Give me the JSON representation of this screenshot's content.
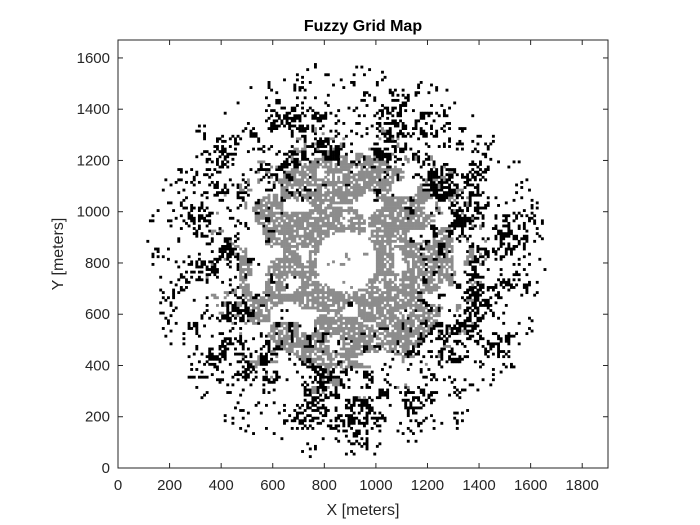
{
  "chart_data": {
    "type": "heatmap",
    "title": "Fuzzy Grid Map",
    "xlabel": "X [meters]",
    "ylabel": "Y [meters]",
    "xlim": [
      0,
      1900
    ],
    "ylim": [
      0,
      1670
    ],
    "xticks": [
      0,
      200,
      400,
      600,
      800,
      1000,
      1200,
      1400,
      1600,
      1800
    ],
    "yticks": [
      0,
      200,
      400,
      600,
      800,
      1000,
      1200,
      1400,
      1600
    ],
    "xtick_labels": [
      "0",
      "200",
      "400",
      "600",
      "800",
      "1000",
      "1200",
      "1400",
      "1600",
      "1800"
    ],
    "ytick_labels": [
      "0",
      "200",
      "400",
      "600",
      "800",
      "1000",
      "1200",
      "1400",
      "1600"
    ],
    "grid": false,
    "colormap": "grayscale",
    "cell_states": [
      {
        "state": "occupied",
        "color": "#000000"
      },
      {
        "state": "uncertain",
        "color": "#8c8c8c"
      },
      {
        "state": "free",
        "color": "#ffffff"
      }
    ],
    "map_center": [
      880,
      800
    ],
    "free_region_radius": 120,
    "uncertain_ring_radius": 420,
    "occupied_extent_radius": 780,
    "map_x_range": [
      90,
      1800
    ],
    "map_y_range": [
      40,
      1640
    ]
  },
  "colors": {
    "background": "#ffffff",
    "axes": "#262626",
    "occupied": "#000000",
    "uncertain": "#8c8c8c"
  }
}
